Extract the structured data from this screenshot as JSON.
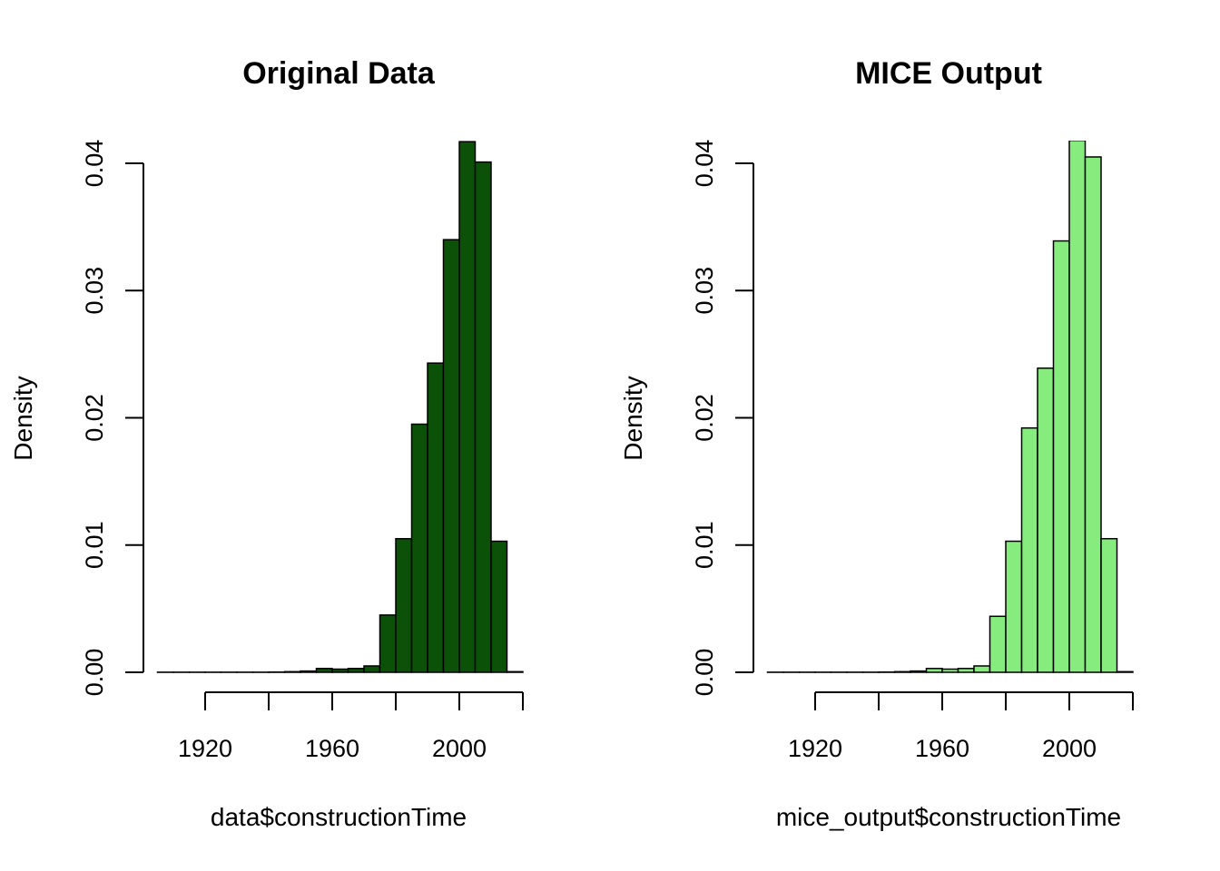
{
  "chart_data": [
    {
      "type": "bar",
      "title": "Original Data",
      "xlabel": "data$constructionTime",
      "ylabel": "Density",
      "fill_color": "#0b5208",
      "xlim": [
        1900,
        2020
      ],
      "ylim": [
        0,
        0.04
      ],
      "x_ticks": [
        1920,
        1940,
        1960,
        1980,
        2000,
        2020
      ],
      "x_tick_labels": [
        "1920",
        "",
        "1960",
        "",
        "2000",
        ""
      ],
      "y_ticks": [
        0,
        0.01,
        0.02,
        0.03,
        0.04
      ],
      "y_tick_labels": [
        "0.00",
        "0.01",
        "0.02",
        "0.03",
        "0.04"
      ],
      "bin_width": 5,
      "bin_starts": [
        1905,
        1910,
        1915,
        1920,
        1925,
        1930,
        1935,
        1940,
        1945,
        1950,
        1955,
        1960,
        1965,
        1970,
        1975,
        1980,
        1985,
        1990,
        1995,
        2000,
        2005,
        2010,
        2015
      ],
      "values": [
        1e-05,
        1e-05,
        1e-05,
        1e-05,
        1e-05,
        1e-05,
        1e-05,
        2e-05,
        5e-05,
        0.0001,
        0.0003,
        0.00025,
        0.0003,
        0.0005,
        0.0045,
        0.0105,
        0.0195,
        0.0243,
        0.034,
        0.0417,
        0.0401,
        0.0103,
        5e-05
      ],
      "grid": false
    },
    {
      "type": "bar",
      "title": "MICE Output",
      "xlabel": "mice_output$constructionTime",
      "ylabel": "Density",
      "fill_color": "#86ec7e",
      "xlim": [
        1900,
        2020
      ],
      "ylim": [
        0,
        0.04
      ],
      "x_ticks": [
        1920,
        1940,
        1960,
        1980,
        2000,
        2020
      ],
      "x_tick_labels": [
        "1920",
        "",
        "1960",
        "",
        "2000",
        ""
      ],
      "y_ticks": [
        0,
        0.01,
        0.02,
        0.03,
        0.04
      ],
      "y_tick_labels": [
        "0.00",
        "0.01",
        "0.02",
        "0.03",
        "0.04"
      ],
      "bin_width": 5,
      "bin_starts": [
        1905,
        1910,
        1915,
        1920,
        1925,
        1930,
        1935,
        1940,
        1945,
        1950,
        1955,
        1960,
        1965,
        1970,
        1975,
        1980,
        1985,
        1990,
        1995,
        2000,
        2005,
        2010,
        2015
      ],
      "values": [
        1e-05,
        1e-05,
        1e-05,
        1e-05,
        1e-05,
        1e-05,
        1e-05,
        2e-05,
        5e-05,
        0.0001,
        0.0003,
        0.00025,
        0.0003,
        0.0005,
        0.0044,
        0.0103,
        0.0192,
        0.0239,
        0.0339,
        0.0418,
        0.0405,
        0.0105,
        5e-05
      ],
      "grid": false
    }
  ]
}
